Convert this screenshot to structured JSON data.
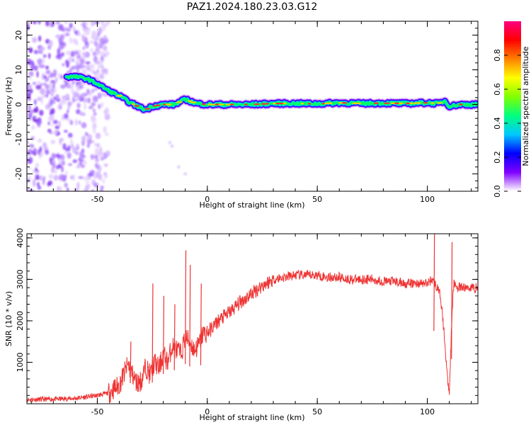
{
  "figure": {
    "title": "PAZ1.2024.180.23.03.G12"
  },
  "chart_data": [
    {
      "type": "heatmap",
      "id": "spectrogram",
      "title": "",
      "xlabel": "Height of straight line (km)",
      "ylabel": "Frequency (Hz)",
      "xlim": [
        -82,
        123
      ],
      "ylim": [
        -25,
        24
      ],
      "x_ticks": [
        -50,
        0,
        50,
        100
      ],
      "y_ticks": [
        -20,
        -10,
        0,
        10,
        20
      ],
      "x_tick_labels": [
        "-50",
        "0",
        "50",
        "100"
      ],
      "y_tick_labels": [
        "-20",
        "-10",
        "0",
        "10",
        "20"
      ],
      "colorbar": {
        "label": "Normalized spectral amplitude",
        "range": [
          0,
          1
        ],
        "ticks": [
          0.0,
          0.2,
          0.4,
          0.6,
          0.8
        ],
        "tick_labels": [
          "0.0",
          "0.2",
          "0.4",
          "0.6",
          "0.8"
        ],
        "colormap": [
          "#ffffff",
          "#8000ff",
          "#0000ff",
          "#00c8ff",
          "#00ff80",
          "#80ff00",
          "#ffff00",
          "#ff8000",
          "#ff0000",
          "#ff0080"
        ]
      },
      "ridge": {
        "x": [
          -60,
          -55,
          -50,
          -45,
          -40,
          -35,
          -30,
          -28,
          -25,
          -20,
          -15,
          -10,
          -8,
          -5,
          0,
          10,
          20,
          30,
          40,
          50,
          60,
          70,
          80,
          90,
          100,
          105,
          108,
          110,
          115,
          123
        ],
        "y": [
          8,
          7.5,
          6,
          4,
          2.5,
          0.5,
          -1,
          -1.5,
          -0.5,
          0,
          0,
          1.5,
          1,
          0.3,
          0,
          0,
          0,
          0.3,
          0.3,
          0.2,
          0.5,
          0.3,
          0.4,
          0.3,
          0.5,
          0.3,
          1,
          -0.5,
          0,
          0
        ]
      },
      "noise_region_x": [
        -82,
        -45
      ]
    },
    {
      "type": "line",
      "id": "snr",
      "title": "",
      "xlabel": "Height of straight line (km)",
      "ylabel": "SNR (10 * v/v)",
      "xlim": [
        -82,
        123
      ],
      "ylim": [
        0,
        4100
      ],
      "x_ticks": [
        -50,
        0,
        50,
        100
      ],
      "y_ticks": [
        1000,
        2000,
        3000,
        4000
      ],
      "x_tick_labels": [
        "-50",
        "0",
        "50",
        "100"
      ],
      "y_tick_labels": [
        "1000",
        "2000",
        "3000",
        "4000"
      ],
      "line_color": "#ee3333",
      "series": [
        {
          "x": [
            -82,
            -70,
            -60,
            -50,
            -45,
            -40,
            -38,
            -36,
            -34,
            -32,
            -30,
            -28,
            -26,
            -24,
            -22,
            -20,
            -18,
            -16,
            -14,
            -12,
            -10,
            -8,
            -6,
            -4,
            -2,
            0,
            5,
            10,
            15,
            20,
            25,
            30,
            35,
            40,
            45,
            50,
            55,
            60,
            65,
            70,
            75,
            80,
            85,
            90,
            95,
            100,
            102,
            104,
            106,
            108,
            109,
            110,
            111,
            112,
            114,
            118,
            123
          ],
          "values": [
            100,
            110,
            130,
            200,
            260,
            450,
            700,
            950,
            700,
            500,
            550,
            900,
            700,
            1000,
            850,
            1200,
            1000,
            1400,
            1300,
            1200,
            1600,
            1500,
            1300,
            1400,
            1700,
            1700,
            2000,
            2200,
            2450,
            2650,
            2850,
            3000,
            3050,
            3100,
            3100,
            3100,
            3050,
            3050,
            3000,
            3000,
            3000,
            2950,
            2950,
            2900,
            2900,
            2900,
            3000,
            2850,
            2600,
            1500,
            700,
            300,
            1800,
            2900,
            2800,
            2800,
            2800
          ]
        }
      ],
      "spikes": {
        "x": [
          -35,
          -25,
          -20,
          -15,
          -10,
          -8,
          -3,
          103,
          111
        ],
        "values": [
          1500,
          2900,
          2600,
          2400,
          3700,
          3350,
          2900,
          4100,
          3900
        ]
      }
    }
  ]
}
